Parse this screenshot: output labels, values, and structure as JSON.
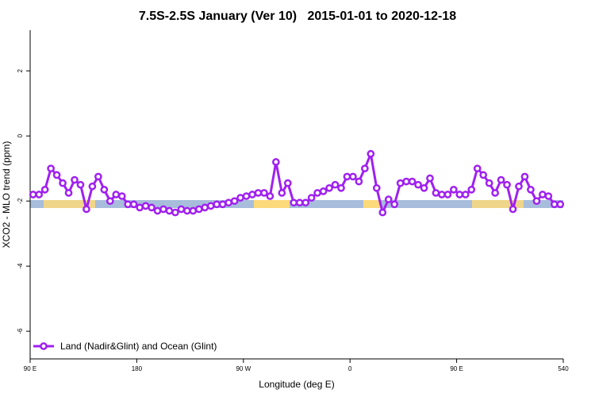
{
  "chart_data": {
    "type": "line",
    "title": "7.5S-2.5S January (Ver 10)   2015-01-01 to 2020-12-18",
    "xlabel": "Longitude (deg E)",
    "ylabel": "XCO2 - MLO trend (ppm)",
    "x": [
      92.5,
      97.5,
      102.5,
      107.5,
      112.5,
      117.5,
      122.5,
      127.5,
      132.5,
      137.5,
      142.5,
      147.5,
      152.5,
      157.5,
      162.5,
      167.5,
      172.5,
      177.5,
      182.5,
      187.5,
      192.5,
      197.5,
      202.5,
      207.5,
      212.5,
      217.5,
      222.5,
      227.5,
      232.5,
      237.5,
      242.5,
      247.5,
      252.5,
      257.5,
      262.5,
      267.5,
      272.5,
      277.5,
      282.5,
      287.5,
      292.5,
      297.5,
      302.5,
      307.5,
      312.5,
      317.5,
      322.5,
      327.5,
      332.5,
      337.5,
      342.5,
      347.5,
      352.5,
      357.5,
      362.5,
      367.5,
      372.5,
      377.5,
      382.5,
      387.5,
      392.5,
      397.5,
      402.5,
      407.5,
      412.5,
      417.5,
      422.5,
      427.5,
      432.5,
      437.5,
      442.5,
      447.5,
      452.5,
      457.5,
      462.5,
      467.5,
      472.5,
      477.5,
      482.5,
      487.5,
      492.5,
      497.5,
      502.5,
      507.5,
      512.5,
      517.5,
      522.5,
      527.5,
      532.5,
      537.5
    ],
    "series": [
      {
        "name": "Land (Nadir&Glint) and Ocean (Glint)",
        "color": "#a020f0",
        "values": [
          -1.8,
          -1.8,
          -1.65,
          -1.0,
          -1.2,
          -1.45,
          -1.75,
          -1.35,
          -1.5,
          -2.25,
          -1.55,
          -1.25,
          -1.65,
          -2.0,
          -1.8,
          -1.85,
          -2.1,
          -2.1,
          -2.2,
          -2.15,
          -2.2,
          -2.3,
          -2.25,
          -2.3,
          -2.35,
          -2.25,
          -2.3,
          -2.3,
          -2.25,
          -2.2,
          -2.15,
          -2.1,
          -2.1,
          -2.05,
          -2.0,
          -1.9,
          -1.85,
          -1.8,
          -1.75,
          -1.75,
          -1.85,
          -0.8,
          -1.75,
          -1.45,
          -2.05,
          -2.05,
          -2.05,
          -1.9,
          -1.75,
          -1.7,
          -1.6,
          -1.5,
          -1.6,
          -1.25,
          -1.25,
          -1.4,
          -1.0,
          -0.55,
          -1.6,
          -2.35,
          -1.95,
          -2.1,
          -1.45,
          -1.4,
          -1.4,
          -1.5,
          -1.6,
          -1.3,
          -1.75,
          -1.8,
          -1.8,
          -1.65,
          -1.8,
          -1.8,
          -1.65,
          -1.0,
          -1.2,
          -1.45,
          -1.75,
          -1.35,
          -1.5,
          -2.25,
          -1.55,
          -1.25,
          -1.65,
          -2.0,
          -1.8,
          -1.85,
          -2.1,
          -2.1
        ]
      }
    ],
    "xlim": [
      90,
      540
    ],
    "xticks": [
      {
        "value": 90,
        "label": "90 E"
      },
      180,
      {
        "value": 270,
        "label": "90 W"
      },
      {
        "value": 360,
        "label": "0"
      },
      {
        "value": 450,
        "label": "90 E"
      },
      540
    ],
    "ylim": [
      -6.85,
      3.25
    ],
    "yticks": [
      2,
      0,
      -2,
      -4,
      -6
    ],
    "legend": "bottom-left"
  }
}
